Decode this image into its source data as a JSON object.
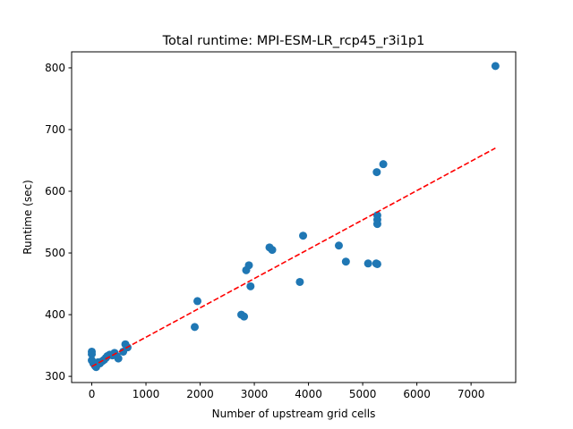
{
  "chart_data": {
    "type": "scatter",
    "title": "Total runtime: MPI-ESM-LR_rcp45_r3i1p1",
    "xlabel": "Number of upstream grid cells",
    "ylabel": "Runtime (sec)",
    "xlim": [
      -372,
      7824
    ],
    "ylim": [
      290,
      826
    ],
    "xticks": [
      0,
      1000,
      2000,
      3000,
      4000,
      5000,
      6000,
      7000
    ],
    "yticks": [
      300,
      400,
      500,
      600,
      700,
      800
    ],
    "grid": false,
    "legend": "none",
    "colors": {
      "points": "#1f77b4",
      "fit": "#ff0000",
      "axes": "#000000"
    },
    "points": [
      {
        "x": 0,
        "y": 340
      },
      {
        "x": 0,
        "y": 336
      },
      {
        "x": 0,
        "y": 326
      },
      {
        "x": 30,
        "y": 321
      },
      {
        "x": 60,
        "y": 317
      },
      {
        "x": 80,
        "y": 315
      },
      {
        "x": 100,
        "y": 319
      },
      {
        "x": 120,
        "y": 323
      },
      {
        "x": 150,
        "y": 321
      },
      {
        "x": 200,
        "y": 325
      },
      {
        "x": 230,
        "y": 327
      },
      {
        "x": 260,
        "y": 330
      },
      {
        "x": 290,
        "y": 333
      },
      {
        "x": 330,
        "y": 335
      },
      {
        "x": 380,
        "y": 334
      },
      {
        "x": 420,
        "y": 338
      },
      {
        "x": 460,
        "y": 333
      },
      {
        "x": 490,
        "y": 329
      },
      {
        "x": 580,
        "y": 340
      },
      {
        "x": 620,
        "y": 352
      },
      {
        "x": 660,
        "y": 347
      },
      {
        "x": 1900,
        "y": 380
      },
      {
        "x": 1950,
        "y": 422
      },
      {
        "x": 2760,
        "y": 400
      },
      {
        "x": 2810,
        "y": 397
      },
      {
        "x": 2850,
        "y": 472
      },
      {
        "x": 2900,
        "y": 480
      },
      {
        "x": 2930,
        "y": 446
      },
      {
        "x": 3280,
        "y": 509
      },
      {
        "x": 3330,
        "y": 505
      },
      {
        "x": 3840,
        "y": 453
      },
      {
        "x": 3900,
        "y": 528
      },
      {
        "x": 4560,
        "y": 512
      },
      {
        "x": 4690,
        "y": 486
      },
      {
        "x": 5100,
        "y": 483
      },
      {
        "x": 5250,
        "y": 483
      },
      {
        "x": 5270,
        "y": 482
      },
      {
        "x": 5260,
        "y": 631
      },
      {
        "x": 5270,
        "y": 561
      },
      {
        "x": 5270,
        "y": 554
      },
      {
        "x": 5270,
        "y": 547
      },
      {
        "x": 5380,
        "y": 644
      },
      {
        "x": 7450,
        "y": 803
      }
    ],
    "fit_line": {
      "x": [
        0,
        7450
      ],
      "y": [
        316,
        670
      ]
    }
  }
}
